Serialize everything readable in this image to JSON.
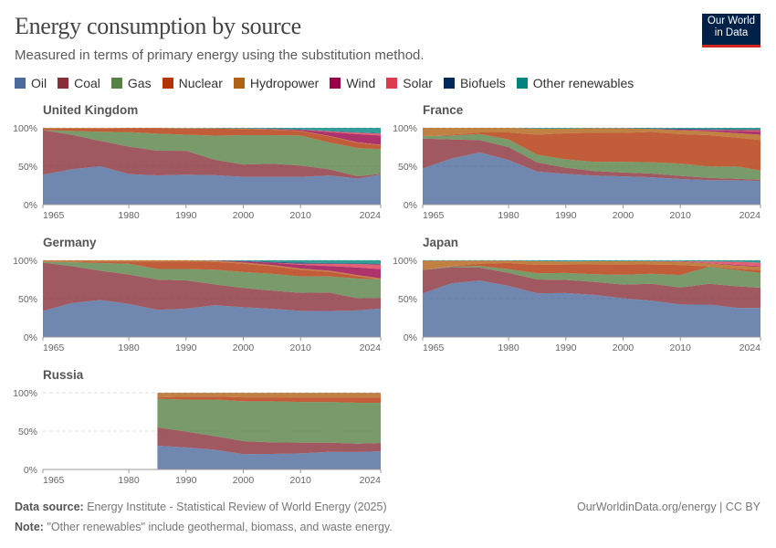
{
  "header": {
    "title": "Energy consumption by source",
    "subtitle": "Measured in terms of primary energy using the substitution method.",
    "logo_line1": "Our World",
    "logo_line2": "in Data"
  },
  "legend": [
    {
      "label": "Oil",
      "color": "#4C6A9C"
    },
    {
      "label": "Coal",
      "color": "#883039"
    },
    {
      "label": "Gas",
      "color": "#578145"
    },
    {
      "label": "Nuclear",
      "color": "#B13507"
    },
    {
      "label": "Hydropower",
      "color": "#B16214"
    },
    {
      "label": "Wind",
      "color": "#970046"
    },
    {
      "label": "Solar",
      "color": "#DB3A51"
    },
    {
      "label": "Biofuels",
      "color": "#00295B"
    },
    {
      "label": "Other renewables",
      "color": "#00847E"
    }
  ],
  "footer": {
    "source_label": "Data source:",
    "source_text": "Energy Institute - Statistical Review of World Energy (2025)",
    "note_label": "Note:",
    "note_text": "\"Other renewables\" include geothermal, biomass, and waste energy.",
    "url": "OurWorldinData.org/energy | CC BY"
  },
  "chart_data": [
    {
      "type": "area",
      "stacked": "relative",
      "title": "United Kingdom",
      "y_ticks": [
        "0%",
        "50%",
        "100%"
      ],
      "x_ticks": [
        "1965",
        "1980",
        "1990",
        "2000",
        "2010",
        "2024"
      ],
      "xlim": [
        1965,
        2024
      ],
      "ylim": [
        0,
        100
      ],
      "x": [
        1965,
        1970,
        1975,
        1980,
        1985,
        1990,
        1995,
        2000,
        2005,
        2010,
        2015,
        2020,
        2024
      ],
      "series": [
        {
          "name": "Oil",
          "values": [
            39,
            46,
            50,
            40,
            38,
            39,
            38,
            36,
            36,
            37,
            38,
            35,
            39
          ]
        },
        {
          "name": "Coal",
          "values": [
            58,
            45,
            33,
            36,
            32,
            31,
            20,
            16,
            17,
            15,
            8,
            3,
            1
          ]
        },
        {
          "name": "Gas",
          "values": [
            0,
            5,
            12,
            19,
            22,
            21,
            31,
            38,
            37,
            40,
            35,
            38,
            32
          ]
        },
        {
          "name": "Nuclear",
          "values": [
            2,
            3,
            4,
            5,
            7,
            8,
            9,
            8,
            7,
            6,
            8,
            7,
            5
          ]
        },
        {
          "name": "Hydropower",
          "values": [
            1,
            1,
            1,
            0.6,
            0.6,
            0.6,
            0.6,
            0.6,
            0.5,
            0.4,
            0.5,
            0.6,
            0.6
          ]
        },
        {
          "name": "Wind",
          "values": [
            0,
            0,
            0,
            0,
            0,
            0,
            0,
            0.1,
            0.5,
            1.3,
            5,
            11,
            12
          ]
        },
        {
          "name": "Solar",
          "values": [
            0,
            0,
            0,
            0,
            0,
            0,
            0,
            0,
            0,
            0,
            1,
            2,
            2.5
          ]
        },
        {
          "name": "Biofuels",
          "values": [
            0,
            0,
            0,
            0,
            0,
            0,
            0,
            0,
            0.2,
            0.5,
            0.5,
            0.5,
            0.5
          ]
        },
        {
          "name": "Other renewables",
          "values": [
            0,
            0,
            0,
            0,
            0,
            0.3,
            0.5,
            0.8,
            1.2,
            2,
            4,
            6,
            7
          ]
        }
      ]
    },
    {
      "type": "area",
      "stacked": "relative",
      "title": "France",
      "y_ticks": [
        "0%",
        "50%",
        "100%"
      ],
      "x_ticks": [
        "1965",
        "1980",
        "1990",
        "2000",
        "2010",
        "2024"
      ],
      "xlim": [
        1965,
        2024
      ],
      "ylim": [
        0,
        100
      ],
      "x": [
        1965,
        1970,
        1975,
        1980,
        1985,
        1990,
        1995,
        2000,
        2005,
        2010,
        2015,
        2020,
        2024
      ],
      "series": [
        {
          "name": "Oil",
          "values": [
            47,
            60,
            68,
            58,
            43,
            40,
            38,
            37,
            36,
            33,
            32,
            32,
            31
          ]
        },
        {
          "name": "Coal",
          "values": [
            39,
            25,
            16,
            17,
            12,
            8,
            6,
            5,
            5,
            4,
            3,
            2,
            1.5
          ]
        },
        {
          "name": "Gas",
          "values": [
            3,
            5,
            8,
            10,
            10,
            11,
            12,
            14,
            15,
            16,
            15,
            16,
            12
          ]
        },
        {
          "name": "Nuclear",
          "values": [
            0,
            1,
            2,
            9,
            26,
            34,
            38,
            38,
            40,
            38,
            41,
            38,
            40
          ]
        },
        {
          "name": "Hydropower",
          "values": [
            11,
            9,
            6,
            6,
            8,
            6,
            6,
            6,
            4,
            5,
            5,
            6,
            7
          ]
        },
        {
          "name": "Wind",
          "values": [
            0,
            0,
            0,
            0,
            0,
            0,
            0,
            0,
            0.1,
            0.8,
            1.5,
            3,
            4
          ]
        },
        {
          "name": "Solar",
          "values": [
            0,
            0,
            0,
            0,
            0,
            0,
            0,
            0,
            0,
            0.1,
            0.5,
            1,
            2
          ]
        },
        {
          "name": "Biofuels",
          "values": [
            0,
            0,
            0,
            0,
            0,
            0,
            0,
            0.1,
            0.5,
            1,
            1,
            1,
            1
          ]
        },
        {
          "name": "Other renewables",
          "values": [
            0,
            0,
            0,
            0,
            1,
            1,
            0.5,
            0.5,
            0.8,
            1.2,
            1.5,
            2,
            2
          ]
        }
      ]
    },
    {
      "type": "area",
      "stacked": "relative",
      "title": "Germany",
      "y_ticks": [
        "0%",
        "50%",
        "100%"
      ],
      "x_ticks": [
        "1965",
        "1980",
        "1990",
        "2000",
        "2010",
        "2024"
      ],
      "xlim": [
        1965,
        2024
      ],
      "ylim": [
        0,
        100
      ],
      "x": [
        1965,
        1970,
        1975,
        1980,
        1985,
        1990,
        1995,
        2000,
        2005,
        2010,
        2015,
        2020,
        2024
      ],
      "series": [
        {
          "name": "Oil",
          "values": [
            34,
            44,
            48,
            43,
            36,
            37,
            41,
            39,
            37,
            35,
            34,
            35,
            37
          ]
        },
        {
          "name": "Coal",
          "values": [
            63,
            48,
            38,
            38,
            40,
            37,
            27,
            25,
            24,
            24,
            24,
            16,
            14
          ]
        },
        {
          "name": "Gas",
          "values": [
            1,
            5,
            10,
            14,
            14,
            15,
            19,
            21,
            22,
            22,
            21,
            26,
            24
          ]
        },
        {
          "name": "Nuclear",
          "values": [
            0,
            0.5,
            2,
            3,
            10,
            10,
            10,
            11,
            10,
            9,
            6,
            3,
            0
          ]
        },
        {
          "name": "Hydropower",
          "values": [
            2,
            2,
            1.5,
            1.5,
            1.5,
            1.3,
            1.5,
            1.5,
            1.5,
            1.5,
            1.5,
            1.5,
            1.5
          ]
        },
        {
          "name": "Wind",
          "values": [
            0,
            0,
            0,
            0,
            0,
            0,
            0.3,
            1.5,
            3,
            5,
            6,
            10,
            12
          ]
        },
        {
          "name": "Solar",
          "values": [
            0,
            0,
            0,
            0,
            0,
            0,
            0,
            0,
            0.2,
            1.5,
            3,
            4.5,
            6
          ]
        },
        {
          "name": "Biofuels",
          "values": [
            0,
            0,
            0,
            0,
            0,
            0,
            0,
            0.3,
            1,
            1.5,
            1,
            1,
            1
          ]
        },
        {
          "name": "Other renewables",
          "values": [
            0,
            0,
            0,
            0,
            0,
            0,
            0.3,
            1,
            2,
            3,
            3.5,
            4,
            4.5
          ]
        }
      ]
    },
    {
      "type": "area",
      "stacked": "relative",
      "title": "Japan",
      "y_ticks": [
        "0%",
        "50%",
        "100%"
      ],
      "x_ticks": [
        "1965",
        "1980",
        "1990",
        "2000",
        "2010",
        "2024"
      ],
      "xlim": [
        1965,
        2024
      ],
      "ylim": [
        0,
        100
      ],
      "x": [
        1965,
        1970,
        1975,
        1980,
        1985,
        1990,
        1995,
        2000,
        2005,
        2010,
        2015,
        2020,
        2024
      ],
      "series": [
        {
          "name": "Oil",
          "values": [
            56,
            70,
            74,
            67,
            57,
            57,
            55,
            51,
            47,
            42,
            42,
            38,
            37
          ]
        },
        {
          "name": "Coal",
          "values": [
            30,
            21,
            17,
            17,
            18,
            17,
            17,
            18,
            22,
            22,
            27,
            28,
            26
          ]
        },
        {
          "name": "Gas",
          "values": [
            0,
            1,
            2,
            5,
            8,
            9,
            10,
            13,
            13,
            16,
            22,
            21,
            19
          ]
        },
        {
          "name": "Nuclear",
          "values": [
            0,
            0.5,
            3,
            8,
            11,
            11,
            13,
            14,
            12,
            13,
            0.5,
            2,
            3.5
          ]
        },
        {
          "name": "Hydropower",
          "values": [
            12,
            7,
            4,
            3,
            5,
            4,
            4,
            4,
            4,
            4,
            4,
            4,
            4
          ]
        },
        {
          "name": "Wind",
          "values": [
            0,
            0,
            0,
            0,
            0,
            0,
            0,
            0,
            0.2,
            0.5,
            0.5,
            1,
            1
          ]
        },
        {
          "name": "Solar",
          "values": [
            0,
            0,
            0,
            0,
            0,
            0,
            0,
            0.1,
            0.2,
            0.5,
            2,
            4,
            4.5
          ]
        },
        {
          "name": "Biofuels",
          "values": [
            0,
            0,
            0,
            0,
            0,
            0,
            0,
            0,
            0,
            0,
            0,
            0,
            0
          ]
        },
        {
          "name": "Other renewables",
          "values": [
            0.5,
            0.5,
            0.5,
            0.5,
            1,
            1.5,
            1.2,
            1,
            1,
            1,
            1.5,
            2,
            3
          ]
        }
      ]
    },
    {
      "type": "area",
      "stacked": "relative",
      "title": "Russia",
      "y_ticks": [
        "0%",
        "50%",
        "100%"
      ],
      "x_ticks": [
        "1965",
        "1980",
        "1990",
        "2000",
        "2010",
        "2024"
      ],
      "xlim": [
        1965,
        2024
      ],
      "ylim": [
        0,
        100
      ],
      "x": [
        1985,
        1990,
        1995,
        2000,
        2005,
        2010,
        2015,
        2020,
        2024
      ],
      "series": [
        {
          "name": "Oil",
          "values": [
            31,
            29,
            26,
            20,
            20,
            21,
            23,
            23,
            24
          ]
        },
        {
          "name": "Coal",
          "values": [
            24,
            21,
            18,
            17,
            15,
            14,
            12,
            11,
            11
          ]
        },
        {
          "name": "Gas",
          "values": [
            37,
            42,
            48,
            52,
            53,
            53,
            53,
            54,
            53
          ]
        },
        {
          "name": "Nuclear",
          "values": [
            2,
            4,
            4,
            5,
            5,
            6,
            6,
            7,
            7
          ]
        },
        {
          "name": "Hydropower",
          "values": [
            6,
            5,
            5,
            6,
            6,
            6,
            6,
            6,
            6
          ]
        },
        {
          "name": "Wind",
          "values": [
            0,
            0,
            0,
            0,
            0,
            0,
            0,
            0,
            0.1
          ]
        },
        {
          "name": "Solar",
          "values": [
            0,
            0,
            0,
            0,
            0,
            0,
            0,
            0.1,
            0.2
          ]
        },
        {
          "name": "Biofuels",
          "values": [
            0,
            0,
            0,
            0,
            0,
            0,
            0,
            0,
            0
          ]
        },
        {
          "name": "Other renewables",
          "values": [
            0.1,
            0.1,
            0.1,
            0.1,
            0.1,
            0.1,
            0.1,
            0.1,
            0.1
          ]
        }
      ]
    }
  ]
}
